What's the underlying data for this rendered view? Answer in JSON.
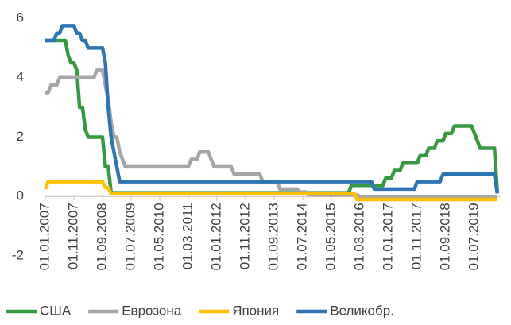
{
  "chart_data": {
    "type": "line",
    "xticks": [
      "01.01.2007",
      "01.11.2007",
      "01.09.2008",
      "01.07.2009",
      "01.05.2010",
      "01.03.2011",
      "01.01.2012",
      "01.11.2012",
      "01.09.2013",
      "01.07.2014",
      "01.05.2015",
      "01.03.2016",
      "01.01.2017",
      "01.11.2017",
      "01.09.2018",
      "01.07.2019"
    ],
    "ylim": [
      -2,
      6
    ],
    "yticks": [
      -2,
      0,
      2,
      4,
      6
    ],
    "legend": "bottom",
    "series": [
      {
        "name": "США",
        "color": "#339a3f",
        "x": [
          "01.01.2007",
          "01.08.2007",
          "01.09.2007",
          "01.10.2007",
          "01.11.2007",
          "01.12.2007",
          "01.01.2008",
          "01.02.2008",
          "01.03.2008",
          "01.04.2008",
          "01.09.2008",
          "01.10.2008",
          "01.11.2008",
          "01.12.2008",
          "01.11.2015",
          "01.12.2015",
          "01.11.2016",
          "01.12.2016",
          "01.02.2017",
          "01.03.2017",
          "01.05.2017",
          "01.06.2017",
          "01.11.2017",
          "01.12.2017",
          "01.02.2018",
          "01.03.2018",
          "01.05.2018",
          "01.06.2018",
          "01.08.2018",
          "01.09.2018",
          "01.11.2018",
          "01.12.2018",
          "01.06.2019",
          "01.07.2019",
          "01.08.2019",
          "01.09.2019",
          "01.02.2020",
          "01.03.2020"
        ],
        "values": [
          5.25,
          5.25,
          4.75,
          4.5,
          4.5,
          4.25,
          3.0,
          3.0,
          2.25,
          2.0,
          2.0,
          1.0,
          1.0,
          0.125,
          0.125,
          0.375,
          0.375,
          0.625,
          0.625,
          0.875,
          0.875,
          1.125,
          1.125,
          1.375,
          1.375,
          1.625,
          1.625,
          1.875,
          1.875,
          2.125,
          2.125,
          2.375,
          2.375,
          2.125,
          1.875,
          1.625,
          1.625,
          0.125
        ]
      },
      {
        "name": "Еврозона",
        "color": "#a6a6a6",
        "x": [
          "01.01.2007",
          "01.02.2007",
          "01.03.2007",
          "01.05.2007",
          "01.06.2007",
          "01.06.2008",
          "01.07.2008",
          "01.09.2008",
          "01.10.2008",
          "01.11.2008",
          "01.12.2008",
          "01.01.2009",
          "01.02.2009",
          "01.03.2009",
          "01.04.2009",
          "01.05.2009",
          "01.03.2011",
          "01.04.2011",
          "01.06.2011",
          "01.07.2011",
          "01.10.2011",
          "01.11.2011",
          "01.12.2011",
          "01.06.2012",
          "01.07.2012",
          "01.04.2013",
          "01.05.2013",
          "01.10.2013",
          "01.11.2013",
          "01.05.2014",
          "01.06.2014",
          "01.08.2014",
          "01.09.2014",
          "01.02.2016",
          "01.03.2016",
          "01.03.2020"
        ],
        "values": [
          3.5,
          3.5,
          3.75,
          3.75,
          4.0,
          4.0,
          4.25,
          4.25,
          3.75,
          3.25,
          2.5,
          2.0,
          2.0,
          1.5,
          1.25,
          1.0,
          1.0,
          1.25,
          1.25,
          1.5,
          1.5,
          1.25,
          1.0,
          1.0,
          0.75,
          0.75,
          0.5,
          0.5,
          0.25,
          0.25,
          0.15,
          0.15,
          0.05,
          0.05,
          0,
          0
        ]
      },
      {
        "name": "Япония",
        "color": "#ffc000",
        "x": [
          "01.01.2007",
          "01.02.2007",
          "01.09.2008",
          "01.10.2008",
          "01.11.2008",
          "01.12.2008",
          "01.01.2016",
          "01.02.2016",
          "01.03.2020"
        ],
        "values": [
          0.25,
          0.5,
          0.5,
          0.3,
          0.3,
          0.1,
          0.1,
          -0.1,
          -0.1
        ]
      },
      {
        "name": "Великобр.",
        "color": "#2e75b6",
        "x": [
          "01.01.2007",
          "01.04.2007",
          "01.05.2007",
          "01.06.2007",
          "01.07.2007",
          "01.11.2007",
          "01.12.2007",
          "01.01.2008",
          "01.02.2008",
          "01.03.2008",
          "01.04.2008",
          "01.09.2008",
          "01.10.2008",
          "01.11.2008",
          "01.12.2008",
          "01.01.2009",
          "01.02.2009",
          "01.03.2009",
          "01.07.2016",
          "01.08.2016",
          "01.10.2017",
          "01.11.2017",
          "01.07.2018",
          "01.08.2018",
          "01.02.2020",
          "01.03.2020"
        ],
        "values": [
          5.25,
          5.25,
          5.5,
          5.5,
          5.75,
          5.75,
          5.5,
          5.5,
          5.25,
          5.25,
          5.0,
          5.0,
          4.5,
          3.0,
          2.0,
          1.5,
          1.0,
          0.5,
          0.5,
          0.25,
          0.25,
          0.5,
          0.5,
          0.75,
          0.75,
          0.1
        ]
      }
    ]
  }
}
